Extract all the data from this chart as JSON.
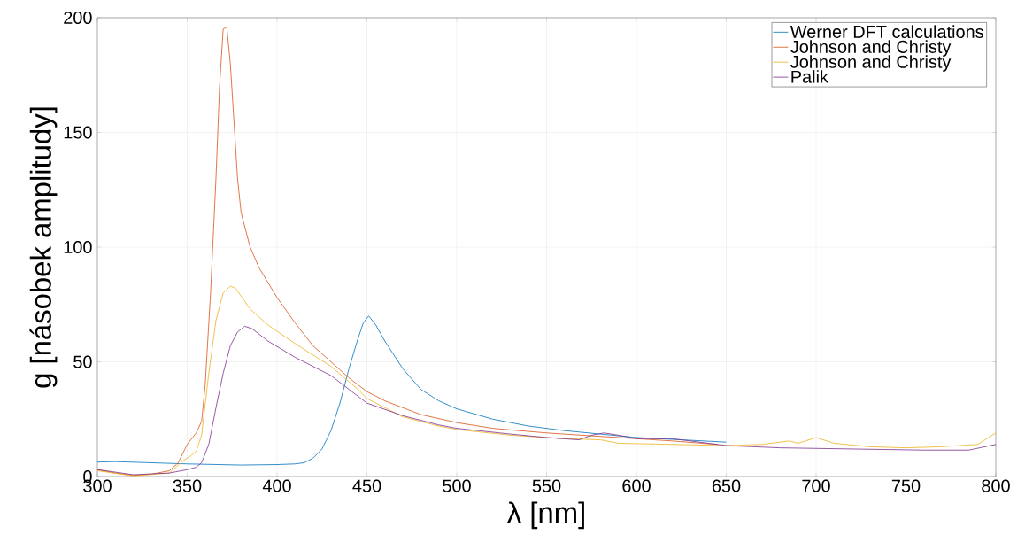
{
  "chart_data": {
    "type": "line",
    "xlabel": "λ [nm]",
    "ylabel": "g [násobek amplitudy]",
    "xlim": [
      300,
      800
    ],
    "ylim": [
      0,
      200
    ],
    "xticks": [
      300,
      350,
      400,
      450,
      500,
      550,
      600,
      650,
      700,
      750,
      800
    ],
    "yticks": [
      0,
      50,
      100,
      150,
      200
    ],
    "grid": true,
    "legend": "top right",
    "line_style": "solid",
    "series": [
      {
        "name": "Werner DFT calculations",
        "color": "#0072bd",
        "x": [
          300,
          310,
          350,
          380,
          400,
          410,
          415,
          420,
          425,
          430,
          435,
          440,
          445,
          448,
          451,
          455,
          460,
          470,
          480,
          490,
          500,
          520,
          540,
          560,
          580,
          600,
          625,
          650
        ],
        "values": [
          6.3,
          6.5,
          5.5,
          5,
          5.2,
          5.5,
          6,
          8,
          12,
          20,
          32,
          47,
          60,
          67,
          70,
          66,
          59,
          47,
          38,
          33,
          29.5,
          25,
          22,
          20,
          18.5,
          17,
          16,
          15
        ]
      },
      {
        "name": "Johnson and Christy",
        "color": "#d95319",
        "x": [
          300,
          310,
          320,
          330,
          340,
          345,
          350,
          355,
          358,
          360,
          363,
          366,
          368,
          370,
          372,
          374,
          376,
          378,
          380,
          385,
          390,
          400,
          410,
          420,
          430,
          440,
          450,
          460,
          480,
          500,
          520,
          550,
          580,
          600,
          620,
          645
        ],
        "values": [
          3,
          1.5,
          0.5,
          1,
          2.5,
          6,
          14,
          19,
          24,
          40,
          80,
          130,
          170,
          195,
          196,
          180,
          155,
          130,
          115,
          100,
          91,
          78,
          67,
          57,
          50,
          43,
          37,
          33,
          27,
          23.5,
          21,
          19,
          17.5,
          16.5,
          15.5,
          14
        ]
      },
      {
        "name": "Johnson and Christy",
        "color": "#edb120",
        "x": [
          300,
          320,
          340,
          348,
          352,
          355,
          358,
          362,
          366,
          370,
          374,
          377,
          385,
          395,
          410,
          430,
          445,
          450,
          470,
          490,
          500,
          530,
          560,
          580,
          590,
          620,
          650,
          670,
          685,
          690,
          700,
          710,
          730,
          750,
          770,
          790,
          800
        ],
        "values": [
          2.5,
          0.3,
          1.5,
          7,
          9,
          11,
          18,
          45,
          68,
          80,
          83,
          82,
          73,
          66,
          58,
          48,
          38,
          34,
          26,
          22,
          20.5,
          18,
          16.5,
          16,
          14.5,
          14,
          13.5,
          14,
          15.5,
          14.5,
          17,
          14.5,
          13,
          12.5,
          13,
          14,
          19
        ]
      },
      {
        "name": "Palik",
        "color": "#7e2f8e",
        "x": [
          300,
          320,
          340,
          350,
          355,
          358,
          362,
          366,
          370,
          374,
          378,
          382,
          386,
          395,
          410,
          430,
          440,
          450,
          470,
          490,
          500,
          530,
          550,
          568,
          575,
          582,
          590,
          600,
          620,
          650,
          680,
          720,
          760,
          785,
          800
        ],
        "values": [
          3,
          0.8,
          1.5,
          3,
          4,
          6,
          14,
          30,
          45,
          57,
          63,
          65.5,
          64.5,
          59,
          52,
          44,
          38,
          32,
          26.5,
          22.5,
          21,
          18.5,
          17,
          16,
          18,
          19,
          18,
          16.5,
          16.5,
          13.5,
          12.5,
          12,
          11.5,
          11.5,
          14
        ]
      }
    ]
  }
}
